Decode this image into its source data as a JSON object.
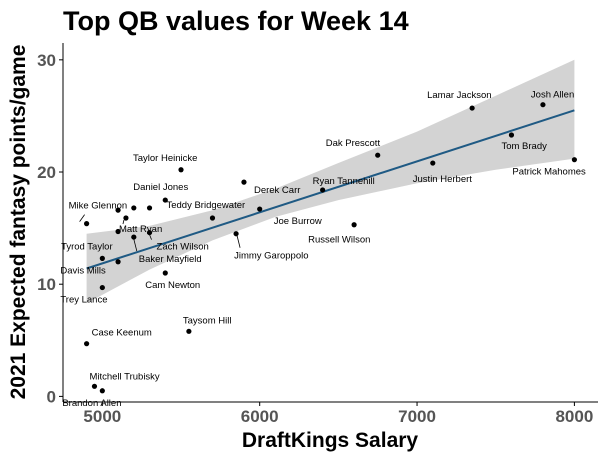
{
  "chart_data": {
    "type": "scatter",
    "title": "Top QB values for Week 14",
    "xlabel": "DraftKings Salary",
    "ylabel": "2021 Expected fantasy points/game",
    "xlim": [
      4750,
      8150
    ],
    "ylim": [
      -0.5,
      31.5
    ],
    "x_ticks": [
      5000,
      6000,
      7000,
      8000
    ],
    "y_ticks": [
      0,
      10,
      20,
      30
    ],
    "x_tick_labels": [
      "5000",
      "6000",
      "7000",
      "8000"
    ],
    "y_tick_labels": [
      "0",
      "10",
      "20",
      "30"
    ],
    "grid": false,
    "point_color": "#000000",
    "trend_color": "#1f5a84",
    "band_color": "#d3d3d3",
    "trend": {
      "x0": 4900,
      "y0": 11.4,
      "x1": 8000,
      "y1": 25.5
    },
    "band": [
      {
        "x": 4900,
        "lo": 8.3,
        "hi": 14.5
      },
      {
        "x": 5300,
        "lo": 11.3,
        "hi": 15.2
      },
      {
        "x": 5700,
        "lo": 13.9,
        "hi": 16.6
      },
      {
        "x": 6100,
        "lo": 16.0,
        "hi": 18.5
      },
      {
        "x": 6500,
        "lo": 17.5,
        "hi": 20.8
      },
      {
        "x": 7000,
        "lo": 19.0,
        "hi": 23.6
      },
      {
        "x": 7500,
        "lo": 20.2,
        "hi": 26.8
      },
      {
        "x": 8000,
        "lo": 21.2,
        "hi": 30.0
      }
    ],
    "points": [
      {
        "name": "Josh Allen",
        "x": 7800,
        "y": 26.0
      },
      {
        "name": "Lamar Jackson",
        "x": 7350,
        "y": 25.7
      },
      {
        "name": "Tom Brady",
        "x": 7600,
        "y": 23.3
      },
      {
        "name": "Patrick Mahomes",
        "x": 8000,
        "y": 21.1
      },
      {
        "name": "Dak Prescott",
        "x": 6750,
        "y": 21.5
      },
      {
        "name": "Justin Herbert",
        "x": 7100,
        "y": 20.8
      },
      {
        "name": "Ryan Tannehill",
        "x": 6400,
        "y": 18.4
      },
      {
        "name": "Derek Carr",
        "x": 5900,
        "y": 19.1
      },
      {
        "name": "Joe Burrow",
        "x": 6000,
        "y": 16.7
      },
      {
        "name": "Russell Wilson",
        "x": 6600,
        "y": 15.3
      },
      {
        "name": "Taylor Heinicke",
        "x": 5500,
        "y": 20.2
      },
      {
        "name": "Daniel Jones",
        "x": 5400,
        "y": 17.5
      },
      {
        "name": "Teddy Bridgewater",
        "x": 5700,
        "y": 15.9
      },
      {
        "name": "Jimmy Garoppolo",
        "x": 5850,
        "y": 14.5
      },
      {
        "name": "Mike Glennon",
        "x": 4900,
        "y": 15.4
      },
      {
        "name": "Matt Ryan",
        "x": 5150,
        "y": 15.9
      },
      {
        "name": "Zach Wilson",
        "x": 5300,
        "y": 14.6
      },
      {
        "name": "Tyrod Taylor",
        "x": 5100,
        "y": 14.7
      },
      {
        "name": "Baker Mayfield",
        "x": 5200,
        "y": 14.2
      },
      {
        "name": "Davis Mills",
        "x": 5000,
        "y": 12.3
      },
      {
        "name": "Cam Newton",
        "x": 5400,
        "y": 11.0
      },
      {
        "name": "Trey Lance",
        "x": 5000,
        "y": 9.7
      },
      {
        "name": "Taysom Hill",
        "x": 5550,
        "y": 5.8
      },
      {
        "name": "Case Keenum",
        "x": 4900,
        "y": 4.7
      },
      {
        "name": "Mitchell Trubisky",
        "x": 4950,
        "y": 0.9
      },
      {
        "name": "Brandon Allen",
        "x": 5000,
        "y": 0.5
      },
      {
        "name": "",
        "x": 5100,
        "y": 16.6
      },
      {
        "name": "",
        "x": 5200,
        "y": 16.8
      },
      {
        "name": "",
        "x": 5300,
        "y": 16.8
      },
      {
        "name": "",
        "x": 5100,
        "y": 12.0
      }
    ]
  }
}
